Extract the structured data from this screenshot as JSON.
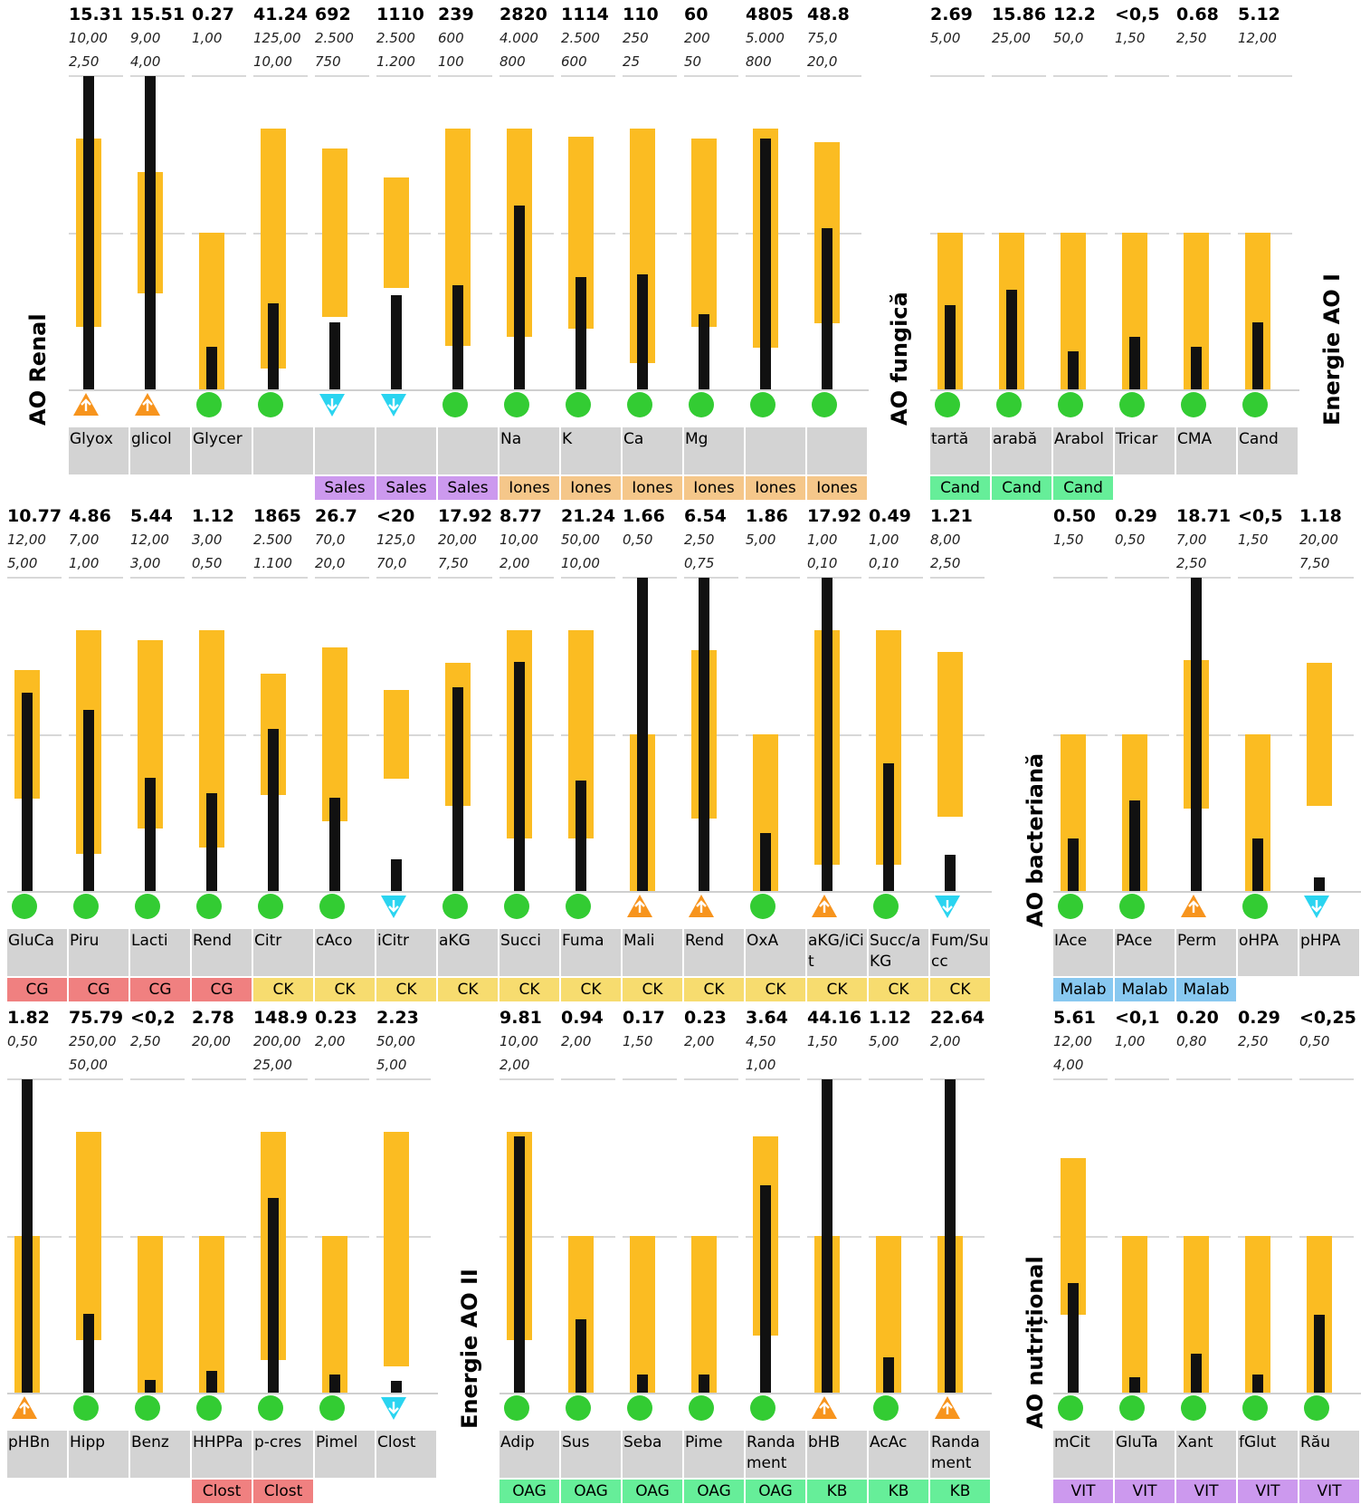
{
  "colors": {
    "range": "#fbbc22",
    "bar": "#111111",
    "normal": "#33cc33",
    "high": "#f7941d",
    "low": "#2ad4f0",
    "label_bg": "#d3d3d3",
    "Sales": "#cc99ee",
    "Iones": "#f5c78a",
    "Cand": "#66ee99",
    "CG": "#f08080",
    "CK": "#f7dc6f",
    "Malab": "#88c8f0",
    "Clost": "#f08080",
    "OAG": "#66ee99",
    "KB": "#66ee99",
    "VIT": "#cc99ee"
  },
  "chart_data": [
    {
      "type": "bar",
      "title": "AO Renal",
      "items": [
        {
          "label": "Glyox",
          "value": "15.31",
          "upper": "10,00",
          "lower": "2,50",
          "status": "high",
          "category": ""
        },
        {
          "label": "glicol",
          "value": "15.51",
          "upper": "9,00",
          "lower": "4,00",
          "status": "high",
          "category": ""
        },
        {
          "label": "Glycer",
          "value": "0.27",
          "upper": "1,00",
          "lower": "",
          "status": "normal",
          "category": ""
        },
        {
          "label": "",
          "value": "41.24",
          "upper": "125,00",
          "lower": "10,00",
          "status": "normal",
          "category": ""
        },
        {
          "label": "",
          "value": "692",
          "upper": "2.500",
          "lower": "750",
          "status": "low",
          "category": "Sales"
        },
        {
          "label": "",
          "value": "1110",
          "upper": "2.500",
          "lower": "1.200",
          "status": "low",
          "category": "Sales"
        },
        {
          "label": "",
          "value": "239",
          "upper": "600",
          "lower": "100",
          "status": "normal",
          "category": "Sales"
        },
        {
          "label": "Na",
          "value": "2820",
          "upper": "4.000",
          "lower": "800",
          "status": "normal",
          "category": "Iones"
        },
        {
          "label": "K",
          "value": "1114",
          "upper": "2.500",
          "lower": "600",
          "status": "normal",
          "category": "Iones"
        },
        {
          "label": "Ca",
          "value": "110",
          "upper": "250",
          "lower": "25",
          "status": "normal",
          "category": "Iones"
        },
        {
          "label": "Mg",
          "value": "60",
          "upper": "200",
          "lower": "50",
          "status": "normal",
          "category": "Iones"
        },
        {
          "label": "",
          "value": "4805",
          "upper": "5.000",
          "lower": "800",
          "status": "normal",
          "category": "Iones"
        },
        {
          "label": "",
          "value": "48.8",
          "upper": "75,0",
          "lower": "20,0",
          "status": "normal",
          "category": "Iones"
        }
      ]
    },
    {
      "type": "bar",
      "title": "AO fungică",
      "items": [
        {
          "label": "tart&#259;",
          "value": "2.69",
          "upper": "5,00",
          "lower": "",
          "status": "normal",
          "category": "Cand"
        },
        {
          "label": "arab&#259;",
          "value": "15.86",
          "upper": "25,00",
          "lower": "",
          "status": "normal",
          "category": "Cand"
        },
        {
          "label": "Arabol",
          "value": "12.2",
          "upper": "50,0",
          "lower": "",
          "status": "normal",
          "category": "Cand"
        },
        {
          "label": "Tricar",
          "value": "<0,5",
          "upper": "1,50",
          "lower": "",
          "status": "normal",
          "category": ""
        },
        {
          "label": "CMA",
          "value": "0.68",
          "upper": "2,50",
          "lower": "",
          "status": "normal",
          "category": ""
        },
        {
          "label": "Cand",
          "value": "5.12",
          "upper": "12,00",
          "lower": "",
          "status": "normal",
          "category": ""
        }
      ]
    },
    {
      "type": "bar",
      "title": "Energie AO I",
      "items": [
        {
          "label": "GluCa",
          "value": "10.77",
          "upper": "12,00",
          "lower": "5,00",
          "status": "normal",
          "category": "CG"
        },
        {
          "label": "Piru",
          "value": "4.86",
          "upper": "7,00",
          "lower": "1,00",
          "status": "normal",
          "category": "CG"
        },
        {
          "label": "Lacti",
          "value": "5.44",
          "upper": "12,00",
          "lower": "3,00",
          "status": "normal",
          "category": "CG"
        },
        {
          "label": "Rend",
          "value": "1.12",
          "upper": "3,00",
          "lower": "0,50",
          "status": "normal",
          "category": "CG"
        },
        {
          "label": "Citr",
          "value": "1865",
          "upper": "2.500",
          "lower": "1.100",
          "status": "normal",
          "category": "CK"
        },
        {
          "label": "cAco",
          "value": "26.7",
          "upper": "70,0",
          "lower": "20,0",
          "status": "normal",
          "category": "CK"
        },
        {
          "label": "iCitr",
          "value": "<20",
          "upper": "125,0",
          "lower": "70,0",
          "status": "low",
          "category": "CK"
        },
        {
          "label": "aKG",
          "value": "17.92",
          "upper": "20,00",
          "lower": "7,50",
          "status": "normal",
          "category": "CK"
        },
        {
          "label": "Succi",
          "value": "8.77",
          "upper": "10,00",
          "lower": "2,00",
          "status": "normal",
          "category": "CK"
        },
        {
          "label": "Fuma",
          "value": "21.24",
          "upper": "50,00",
          "lower": "10,00",
          "status": "normal",
          "category": "CK"
        },
        {
          "label": "Mali",
          "value": "1.66",
          "upper": "0,50",
          "lower": "",
          "status": "high",
          "category": "CK"
        },
        {
          "label": "Rend",
          "value": "6.54",
          "upper": "2,50",
          "lower": "0,75",
          "status": "high",
          "category": "CK"
        },
        {
          "label": "OxA",
          "value": "1.86",
          "upper": "5,00",
          "lower": "",
          "status": "normal",
          "category": "CK"
        },
        {
          "label": "aKG/iCit",
          "value": "17.92",
          "upper": "1,00",
          "lower": "0,10",
          "status": "high",
          "category": "CK"
        },
        {
          "label": "Succ/aKG",
          "value": "0.49",
          "upper": "1,00",
          "lower": "0,10",
          "status": "normal",
          "category": "CK"
        },
        {
          "label": "Fum/Succ",
          "value": "1.21",
          "upper": "8,00",
          "lower": "2,50",
          "status": "low",
          "category": "CK"
        }
      ]
    },
    {
      "type": "bar",
      "title": "AO bacteriană",
      "items": [
        {
          "label": "IAce",
          "value": "0.50",
          "upper": "1,50",
          "lower": "",
          "status": "normal",
          "category": "Malab"
        },
        {
          "label": "PAce",
          "value": "0.29",
          "upper": "0,50",
          "lower": "",
          "status": "normal",
          "category": "Malab"
        },
        {
          "label": "Perm",
          "value": "18.71",
          "upper": "7,00",
          "lower": "2,50",
          "status": "high",
          "category": "Malab"
        },
        {
          "label": "oHPA",
          "value": "<0,5",
          "upper": "1,50",
          "lower": "",
          "status": "normal",
          "category": ""
        },
        {
          "label": "pHPA",
          "value": "1.18",
          "upper": "20,00",
          "lower": "7,50",
          "status": "low",
          "category": ""
        },
        {
          "label": "pHBn",
          "value": "1.82",
          "upper": "0,50",
          "lower": "",
          "status": "high",
          "category": ""
        },
        {
          "label": "Hipp",
          "value": "75.79",
          "upper": "250,00",
          "lower": "50,00",
          "status": "normal",
          "category": ""
        },
        {
          "label": "Benz",
          "value": "<0,2",
          "upper": "2,50",
          "lower": "",
          "status": "normal",
          "category": ""
        },
        {
          "label": "HHPPa",
          "value": "2.78",
          "upper": "20,00",
          "lower": "",
          "status": "normal",
          "category": "Clost"
        },
        {
          "label": "p-cres",
          "value": "148.9",
          "upper": "200,00",
          "lower": "25,00",
          "status": "normal",
          "category": "Clost"
        },
        {
          "label": "Pimel",
          "value": "0.23",
          "upper": "2,00",
          "lower": "",
          "status": "normal",
          "category": ""
        },
        {
          "label": "Clost",
          "value": "2.23",
          "upper": "50,00",
          "lower": "5,00",
          "status": "low",
          "category": ""
        }
      ]
    },
    {
      "type": "bar",
      "title": "Energie AO II",
      "items": [
        {
          "label": "Adip",
          "value": "9.81",
          "upper": "10,00",
          "lower": "2,00",
          "status": "normal",
          "category": "OAG"
        },
        {
          "label": "Sus",
          "value": "0.94",
          "upper": "2,00",
          "lower": "",
          "status": "normal",
          "category": "OAG"
        },
        {
          "label": "Seba",
          "value": "0.17",
          "upper": "1,50",
          "lower": "",
          "status": "normal",
          "category": "OAG"
        },
        {
          "label": "Pime",
          "value": "0.23",
          "upper": "2,00",
          "lower": "",
          "status": "normal",
          "category": "OAG"
        },
        {
          "label": "Randament",
          "value": "3.64",
          "upper": "4,50",
          "lower": "1,00",
          "status": "normal",
          "category": "OAG"
        },
        {
          "label": "bHB",
          "value": "44.16",
          "upper": "1,50",
          "lower": "",
          "status": "high",
          "category": "KB"
        },
        {
          "label": "AcAc",
          "value": "1.12",
          "upper": "5,00",
          "lower": "",
          "status": "normal",
          "category": "KB"
        },
        {
          "label": "Randament",
          "value": "22.64",
          "upper": "2,00",
          "lower": "",
          "status": "high",
          "category": "KB"
        }
      ]
    },
    {
      "type": "bar",
      "title": "AO nutrițional",
      "items": [
        {
          "label": "mCit",
          "value": "5.61",
          "upper": "12,00",
          "lower": "4,00",
          "status": "normal",
          "category": "VIT"
        },
        {
          "label": "GluTa",
          "value": "<0,1",
          "upper": "1,00",
          "lower": "",
          "status": "normal",
          "category": "VIT"
        },
        {
          "label": "Xant",
          "value": "0.20",
          "upper": "0,80",
          "lower": "",
          "status": "normal",
          "category": "VIT"
        },
        {
          "label": "fGlut",
          "value": "0.29",
          "upper": "2,50",
          "lower": "",
          "status": "normal",
          "category": "VIT"
        },
        {
          "label": "R&#259;u",
          "value": "<0,25",
          "upper": "0,50",
          "lower": "",
          "status": "normal",
          "category": "VIT"
        }
      ]
    }
  ]
}
